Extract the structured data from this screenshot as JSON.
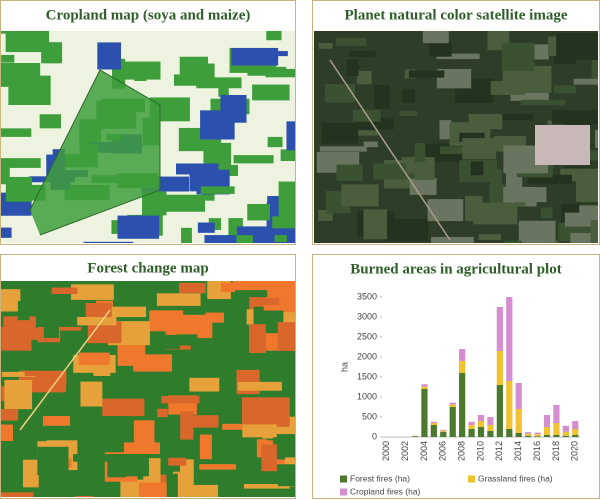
{
  "panels": [
    {
      "title": "Cropland map (soya and maize)"
    },
    {
      "title": "Planet natural color satellite image"
    },
    {
      "title": "Forest change map"
    }
  ],
  "chart_data": {
    "type": "bar",
    "stacked": true,
    "title": "Burned areas in agricultural plot",
    "ylabel": "ha",
    "categories": [
      "2000",
      null,
      "2002",
      null,
      "2004",
      null,
      "2006",
      null,
      "2008",
      null,
      "2010",
      null,
      "2012",
      null,
      "2014",
      null,
      "2016",
      null,
      "2018",
      null,
      "2020"
    ],
    "series": [
      {
        "name": "Forest fires (ha)",
        "color": "#4b7a2c",
        "values": [
          0,
          0,
          0,
          20,
          1200,
          300,
          130,
          750,
          1600,
          200,
          250,
          150,
          1300,
          200,
          100,
          30,
          20,
          50,
          50,
          30,
          50
        ]
      },
      {
        "name": "Grassland fires (ha)",
        "color": "#f0c232",
        "values": [
          0,
          0,
          0,
          5,
          60,
          50,
          30,
          60,
          300,
          100,
          150,
          150,
          850,
          1200,
          600,
          50,
          50,
          200,
          300,
          100,
          150
        ]
      },
      {
        "name": "Cropland fires (ha)",
        "color": "#d58fd0",
        "values": [
          0,
          0,
          0,
          5,
          60,
          30,
          20,
          50,
          300,
          80,
          150,
          200,
          1100,
          2100,
          650,
          40,
          40,
          300,
          450,
          150,
          200
        ]
      }
    ],
    "ylim": [
      0,
      3500
    ],
    "yticks": [
      0,
      500,
      1000,
      1500,
      2000,
      2500,
      3000,
      3500
    ],
    "grid": false
  }
}
